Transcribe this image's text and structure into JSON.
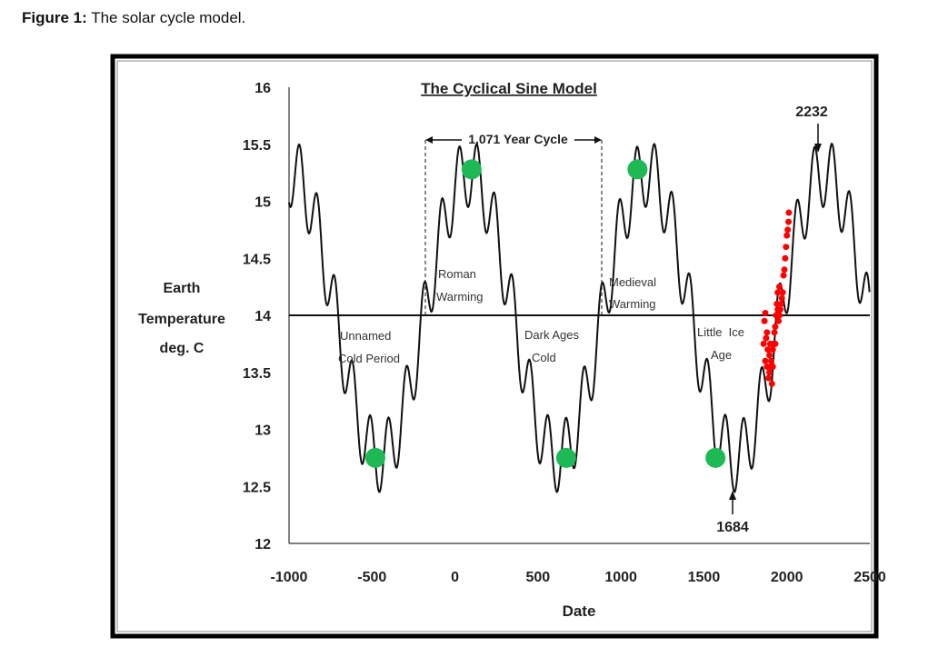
{
  "caption": {
    "label": "Figure 1:",
    "text": " The solar cycle model."
  },
  "chart_data": {
    "type": "line",
    "title": "The Cyclical Sine Model",
    "xlabel": "Date",
    "ylabel": [
      "Earth",
      "Temperature",
      "deg. C"
    ],
    "xlim": [
      -1000,
      2500
    ],
    "ylim": [
      12,
      16
    ],
    "xticks": [
      "-1000",
      "-500",
      "0",
      "500",
      "1000",
      "1500",
      "2000",
      "2500"
    ],
    "yticks": [
      "16",
      "15.5",
      "15",
      "14.5",
      "14",
      "13.5",
      "13",
      "12.5",
      "12"
    ],
    "grid": false,
    "baseline": 14,
    "model": {
      "mean": 14,
      "main_amplitude": 1.25,
      "main_period": 1071,
      "main_zero_crossing": -184,
      "minor_amplitude": 0.3,
      "minor_period": 107,
      "minor_phase": 1604
    },
    "green_points": [
      {
        "x": -480,
        "y": 12.75
      },
      {
        "x": 100,
        "y": 15.28
      },
      {
        "x": 670,
        "y": 12.75
      },
      {
        "x": 1100,
        "y": 15.28
      },
      {
        "x": 1570,
        "y": 12.75
      }
    ],
    "red_points": [
      {
        "x": 1860,
        "y": 13.75
      },
      {
        "x": 1865,
        "y": 13.95
      },
      {
        "x": 1870,
        "y": 13.6
      },
      {
        "x": 1870,
        "y": 14.02
      },
      {
        "x": 1875,
        "y": 13.8
      },
      {
        "x": 1880,
        "y": 13.55
      },
      {
        "x": 1885,
        "y": 13.7
      },
      {
        "x": 1890,
        "y": 13.45
      },
      {
        "x": 1895,
        "y": 13.65
      },
      {
        "x": 1900,
        "y": 13.75
      },
      {
        "x": 1900,
        "y": 13.55
      },
      {
        "x": 1905,
        "y": 13.6
      },
      {
        "x": 1910,
        "y": 13.4
      },
      {
        "x": 1915,
        "y": 13.7
      },
      {
        "x": 1920,
        "y": 13.75
      },
      {
        "x": 1925,
        "y": 13.85
      },
      {
        "x": 1930,
        "y": 13.9
      },
      {
        "x": 1935,
        "y": 14.0
      },
      {
        "x": 1940,
        "y": 14.1
      },
      {
        "x": 1945,
        "y": 14.05
      },
      {
        "x": 1950,
        "y": 13.95
      },
      {
        "x": 1955,
        "y": 14.0
      },
      {
        "x": 1960,
        "y": 14.05
      },
      {
        "x": 1965,
        "y": 14.1
      },
      {
        "x": 1970,
        "y": 14.15
      },
      {
        "x": 1975,
        "y": 14.2
      },
      {
        "x": 1980,
        "y": 14.35
      },
      {
        "x": 1985,
        "y": 14.4
      },
      {
        "x": 1990,
        "y": 14.5
      },
      {
        "x": 1995,
        "y": 14.6
      },
      {
        "x": 2000,
        "y": 14.7
      },
      {
        "x": 2005,
        "y": 14.75
      },
      {
        "x": 2010,
        "y": 14.82
      },
      {
        "x": 2012,
        "y": 14.9
      },
      {
        "x": 1955,
        "y": 14.25
      },
      {
        "x": 1880,
        "y": 13.85
      },
      {
        "x": 1895,
        "y": 13.5
      },
      {
        "x": 1915,
        "y": 13.55
      },
      {
        "x": 1930,
        "y": 13.75
      },
      {
        "x": 1945,
        "y": 14.2
      }
    ],
    "annotations": {
      "cycle": "1,071 Year Cycle",
      "unnamed": [
        "Unnamed",
        "Cold Period"
      ],
      "roman": [
        "Roman",
        "Warming"
      ],
      "dark": [
        "Dark Ages",
        "Cold"
      ],
      "medieval": [
        "Medieval",
        "Warming"
      ],
      "little": [
        "Little  Ice",
        "Age"
      ],
      "peak_2232": "2232",
      "min_1684": "1684"
    },
    "colors": {
      "line": "#111111",
      "green": "#1db954",
      "red": "#ff0000"
    }
  }
}
